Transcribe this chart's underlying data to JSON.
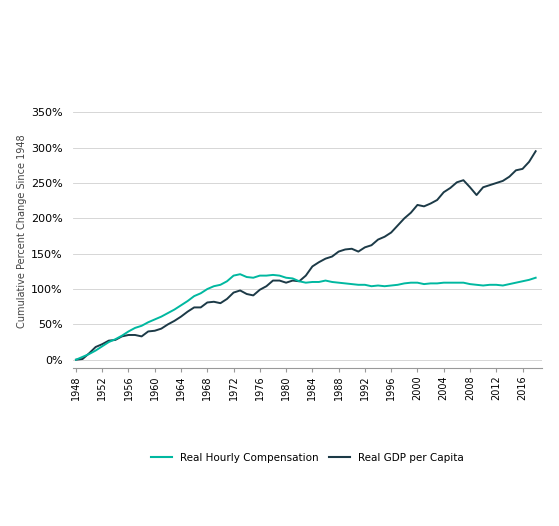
{
  "ylabel": "Cumulative Percent Change Since 1948",
  "legend_hourly": "Real Hourly Compensation",
  "legend_gdp": "Real GDP per Capita",
  "color_hourly": "#00B8A0",
  "color_gdp": "#1C3A47",
  "background_color": "#ffffff",
  "title_color_en": "#1a1a1a",
  "title_color_cn": "#cc0000",
  "years": [
    1948,
    1949,
    1950,
    1951,
    1952,
    1953,
    1954,
    1955,
    1956,
    1957,
    1958,
    1959,
    1960,
    1961,
    1962,
    1963,
    1964,
    1965,
    1966,
    1967,
    1968,
    1969,
    1970,
    1971,
    1972,
    1973,
    1974,
    1975,
    1976,
    1977,
    1978,
    1979,
    1980,
    1981,
    1982,
    1983,
    1984,
    1985,
    1986,
    1987,
    1988,
    1989,
    1990,
    1991,
    1992,
    1993,
    1994,
    1995,
    1996,
    1997,
    1998,
    1999,
    2000,
    2001,
    2002,
    2003,
    2004,
    2005,
    2006,
    2007,
    2008,
    2009,
    2010,
    2011,
    2012,
    2013,
    2014,
    2015,
    2016,
    2017,
    2018
  ],
  "hourly_compensation": [
    0,
    4,
    8,
    13,
    19,
    25,
    29,
    34,
    40,
    45,
    48,
    53,
    57,
    61,
    66,
    71,
    77,
    83,
    90,
    94,
    100,
    104,
    106,
    111,
    119,
    121,
    117,
    116,
    119,
    119,
    120,
    119,
    116,
    115,
    111,
    109,
    110,
    110,
    112,
    110,
    109,
    108,
    107,
    106,
    106,
    104,
    105,
    104,
    105,
    106,
    108,
    109,
    109,
    107,
    108,
    108,
    109,
    109,
    109,
    109,
    107,
    106,
    105,
    106,
    106,
    105,
    107,
    109,
    111,
    113,
    116
  ],
  "gdp_per_capita": [
    0,
    1,
    9,
    18,
    22,
    27,
    28,
    33,
    35,
    35,
    33,
    40,
    41,
    44,
    50,
    55,
    61,
    68,
    74,
    74,
    81,
    82,
    80,
    86,
    95,
    98,
    93,
    91,
    99,
    104,
    112,
    112,
    109,
    112,
    111,
    119,
    132,
    138,
    143,
    146,
    153,
    156,
    157,
    153,
    159,
    162,
    170,
    174,
    180,
    190,
    200,
    208,
    219,
    217,
    221,
    226,
    237,
    243,
    251,
    254,
    244,
    233,
    244,
    247,
    250,
    253,
    259,
    268,
    270,
    280,
    295
  ],
  "yticks": [
    0,
    50,
    100,
    150,
    200,
    250,
    300,
    350
  ],
  "xtick_years": [
    1948,
    1952,
    1956,
    1960,
    1964,
    1968,
    1972,
    1976,
    1980,
    1984,
    1988,
    1992,
    1996,
    2000,
    2004,
    2008,
    2012,
    2016
  ],
  "ylim": [
    -12,
    375
  ],
  "xlim": [
    1947.5,
    2019
  ]
}
